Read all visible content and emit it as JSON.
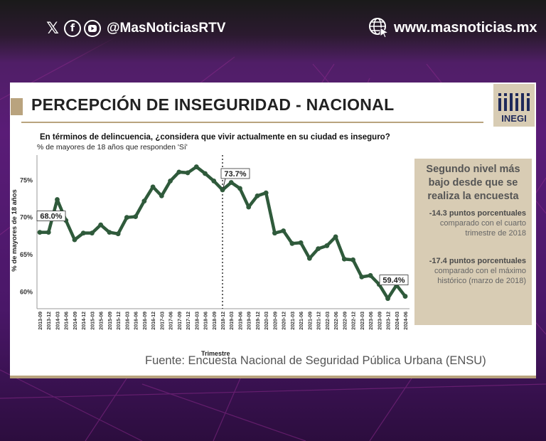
{
  "header": {
    "social_handle": "@MasNoticiasRTV",
    "website": "www.masnoticias.mx",
    "social_icons": [
      "x-icon",
      "facebook-icon",
      "youtube-icon"
    ],
    "website_icon": "globe-cursor-icon"
  },
  "colors": {
    "background": "#4d1f62",
    "accent": "#b9a37e",
    "line": "#2f5a3b",
    "panel": "#d8ccb4"
  },
  "logo": {
    "text": "INEGI"
  },
  "title": "PERCEPCIÓN DE INSEGURIDAD - NACIONAL",
  "question": "En términos de delincuencia, ¿considera que vivir actualmente en su ciudad es inseguro?",
  "side_panel": {
    "heading": "Segundo nivel más bajo desde que se realiza la encuesta",
    "stat1_bold": "-14.3 puntos porcentuales",
    "stat1_text": "comparado con el cuarto trimestre de 2018",
    "stat2_bold": "-17.4 puntos porcentuales",
    "stat2_text": "comparado con el máximo histórico (marzo de 2018)"
  },
  "source": "Fuente: Encuesta Nacional de Seguridad Pública Urbana (ENSU)",
  "chart_data": {
    "type": "line",
    "subtitle": "% de mayores de 18 años que responden 'Sí'",
    "xlabel": "Trimestre",
    "ylabel": "% de mayores de 18 años",
    "ylim": [
      58.5,
      78
    ],
    "yticks": [
      60,
      65,
      70,
      75
    ],
    "ytick_labels": [
      "60%",
      "65%",
      "70%",
      "75%"
    ],
    "grid": false,
    "x": [
      "2013-09",
      "2013-12",
      "2014-03",
      "2014-06",
      "2014-09",
      "2014-12",
      "2015-03",
      "2015-06",
      "2015-09",
      "2015-12",
      "2016-03",
      "2016-06",
      "2016-09",
      "2016-12",
      "2017-03",
      "2017-06",
      "2017-09",
      "2017-12",
      "2018-03",
      "2018-06",
      "2018-09",
      "2018-12",
      "2019-03",
      "2019-06",
      "2019-09",
      "2019-12",
      "2020-03",
      "2020-09",
      "2020-12",
      "2021-03",
      "2021-06",
      "2021-09",
      "2021-12",
      "2022-03",
      "2022-06",
      "2022-09",
      "2022-12",
      "2023-03",
      "2023-06",
      "2023-09",
      "2023-12",
      "2024-03",
      "2024-06"
    ],
    "values": [
      68.0,
      68.0,
      72.4,
      69.6,
      67.0,
      67.9,
      67.9,
      69.0,
      68.0,
      67.8,
      70.0,
      70.1,
      72.2,
      74.1,
      72.9,
      74.9,
      76.1,
      76.0,
      76.8,
      75.9,
      74.9,
      73.7,
      74.7,
      73.9,
      71.4,
      72.9,
      73.3,
      67.9,
      68.2,
      66.5,
      66.6,
      64.5,
      65.8,
      66.2,
      67.4,
      64.4,
      64.3,
      62.0,
      62.2,
      61.0,
      59.1,
      60.9,
      59.4
    ],
    "annotations": [
      {
        "x": "2013-09",
        "label": "68.0%"
      },
      {
        "x": "2018-12",
        "label": "73.7%"
      },
      {
        "x": "2024-06",
        "label": "59.4%"
      }
    ],
    "reference_line_x": "2018-12"
  }
}
